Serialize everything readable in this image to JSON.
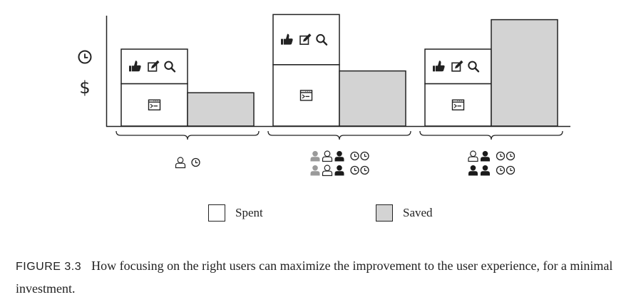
{
  "legend": [
    {
      "label": "Spent",
      "color": "#ffffff"
    },
    {
      "label": "Saved",
      "color": "#d3d3d3"
    }
  ],
  "axis_icons": [
    "clock-icon",
    "dollar-sign"
  ],
  "axis_symbol": "$",
  "groups": [
    {
      "spent_top_icons": [
        "thumbs-up-icon",
        "edit-icon",
        "search-icon"
      ],
      "spent_bottom_icon": "terminal-window-icon",
      "spent_total": 0.6,
      "spent_lower_share": 0.55,
      "saved": 0.26,
      "users": [
        [
          "user-outline",
          "clock"
        ]
      ]
    },
    {
      "spent_top_icons": [
        "thumbs-up-icon",
        "edit-icon",
        "search-icon"
      ],
      "spent_bottom_icon": "terminal-window-icon",
      "spent_total": 0.87,
      "spent_lower_share": 0.55,
      "saved": 0.43,
      "users": [
        [
          "user-gray",
          "user-outline",
          "user-solid",
          "clock",
          "clock"
        ],
        [
          "user-gray",
          "user-outline",
          "user-solid",
          "clock",
          "clock"
        ]
      ]
    },
    {
      "spent_top_icons": [
        "thumbs-up-icon",
        "edit-icon",
        "search-icon"
      ],
      "spent_bottom_icon": "terminal-window-icon",
      "spent_total": 0.6,
      "spent_lower_share": 0.55,
      "saved": 0.83,
      "users": [
        [
          "user-outline",
          "user-solid",
          "clock",
          "clock"
        ],
        [
          "user-solid",
          "user-solid",
          "clock",
          "clock"
        ]
      ]
    }
  ],
  "caption": {
    "figure": "FIGURE 3.3",
    "text": "How focusing on the right users can maximize the improvement to the user experience, for a minimal investment."
  }
}
